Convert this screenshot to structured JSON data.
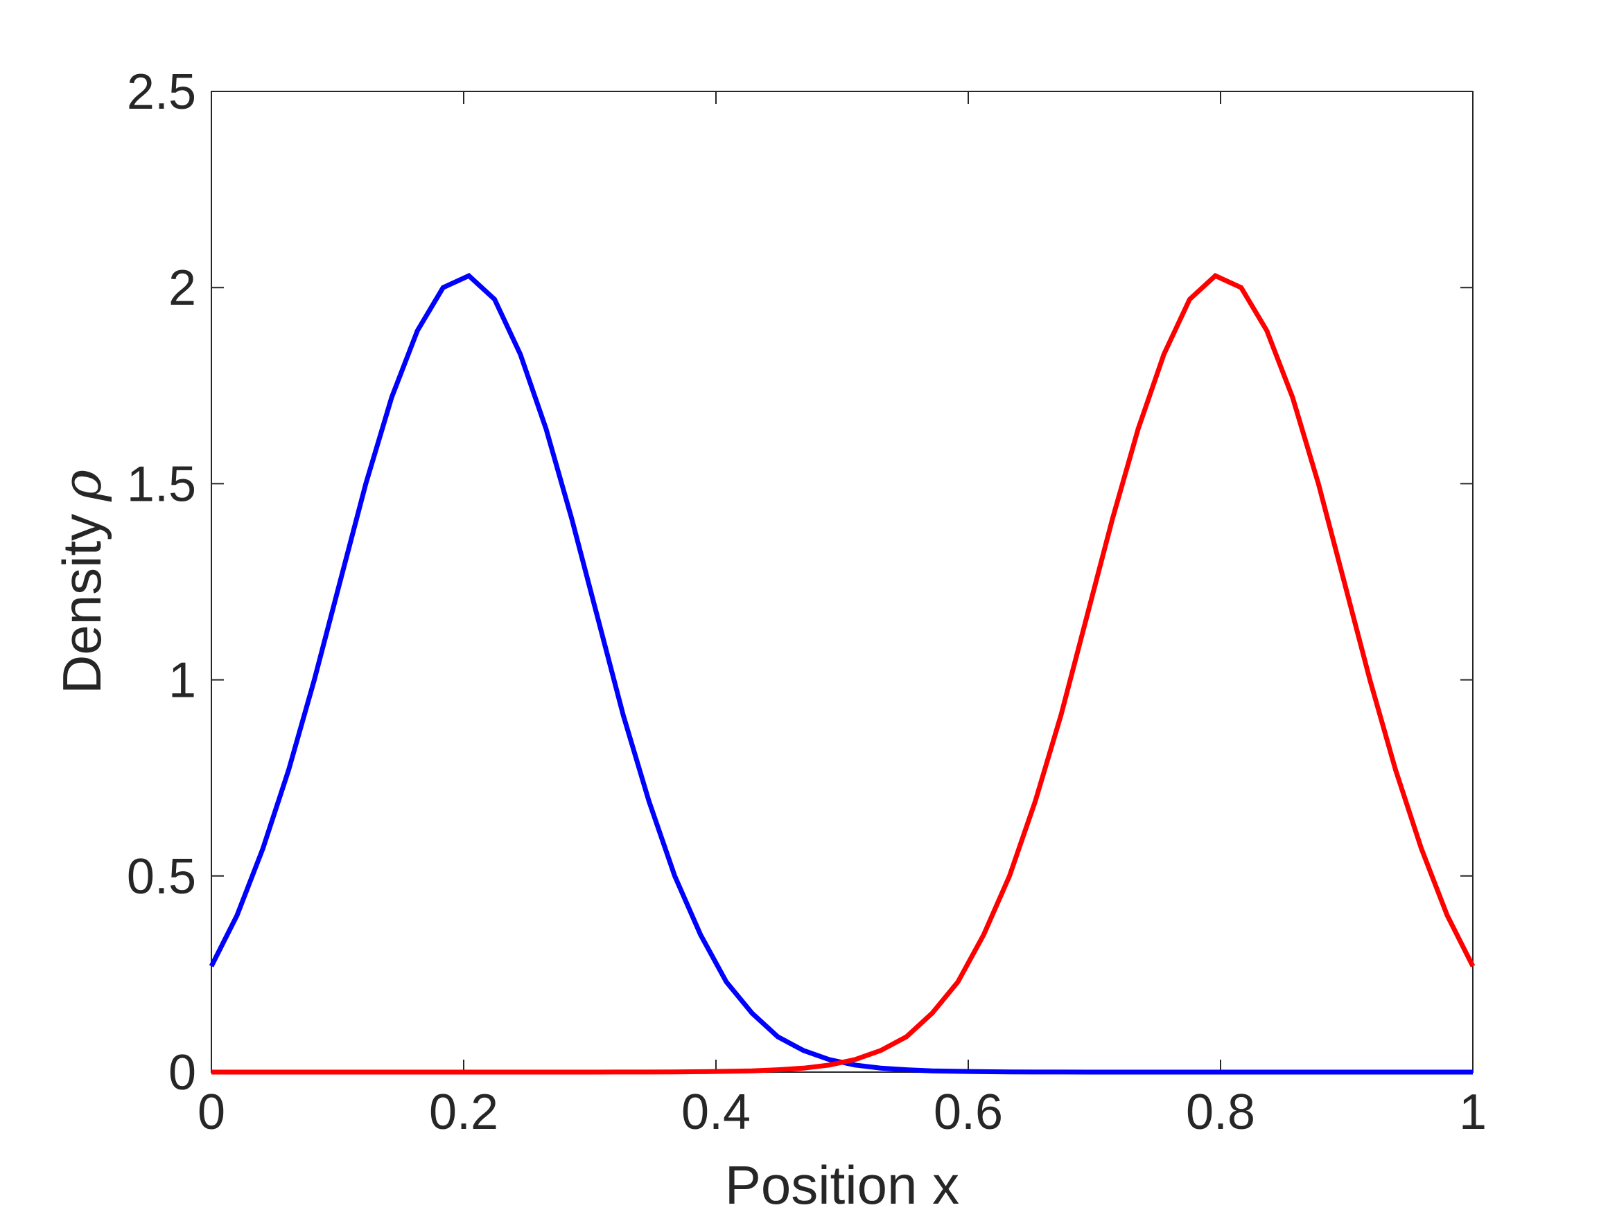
{
  "chart_data": {
    "type": "line",
    "xlabel": "Position x",
    "ylabel": "Density",
    "ylabel_symbol": "ρ",
    "xlim": [
      0,
      1
    ],
    "ylim": [
      0,
      2.5
    ],
    "xticks": [
      0,
      0.2,
      0.4,
      0.6,
      0.8,
      1
    ],
    "xtick_labels": [
      "0",
      "0.2",
      "0.4",
      "0.6",
      "0.8",
      "1"
    ],
    "yticks": [
      0,
      0.5,
      1,
      1.5,
      2,
      2.5
    ],
    "ytick_labels": [
      "0",
      "0.5",
      "1",
      "1.5",
      "2",
      "2.5"
    ],
    "grid": false,
    "legend": "none",
    "series": [
      {
        "color": "#0000ff",
        "x": [
          0,
          0.0204,
          0.0408,
          0.0612,
          0.0816,
          0.102,
          0.1224,
          0.1429,
          0.1633,
          0.1837,
          0.2041,
          0.2245,
          0.2449,
          0.2653,
          0.2857,
          0.3061,
          0.3265,
          0.3469,
          0.3673,
          0.3878,
          0.4082,
          0.4286,
          0.449,
          0.4694,
          0.4898,
          0.5102,
          0.5306,
          0.551,
          0.5714,
          0.5918,
          0.6122,
          0.6327,
          0.6531,
          0.6735,
          0.6939,
          0.7143,
          0.7347,
          0.7551,
          0.7755,
          0.7959,
          0.8163,
          0.8367,
          0.8571,
          0.8776,
          0.898,
          0.9184,
          0.9388,
          0.9592,
          0.9796,
          1
        ],
        "y": [
          0.27,
          0.4,
          0.57,
          0.77,
          1.0,
          1.25,
          1.5,
          1.72,
          1.89,
          2.0,
          2.03,
          1.97,
          1.83,
          1.64,
          1.41,
          1.16,
          0.91,
          0.69,
          0.5,
          0.35,
          0.23,
          0.15,
          0.09,
          0.055,
          0.032,
          0.018,
          0.01,
          0.006,
          0.003,
          0.002,
          0.001,
          0.0005,
          0.0002,
          0.0001,
          0,
          0,
          0,
          0,
          0,
          0,
          0,
          0,
          0,
          0,
          0,
          0,
          0,
          0,
          0,
          0
        ]
      },
      {
        "color": "#ff0000",
        "x": [
          0,
          0.0204,
          0.0408,
          0.0612,
          0.0816,
          0.102,
          0.1224,
          0.1429,
          0.1633,
          0.1837,
          0.2041,
          0.2245,
          0.2449,
          0.2653,
          0.2857,
          0.3061,
          0.3265,
          0.3469,
          0.3673,
          0.3878,
          0.4082,
          0.4286,
          0.449,
          0.4694,
          0.4898,
          0.5102,
          0.5306,
          0.551,
          0.5714,
          0.5918,
          0.6122,
          0.6327,
          0.6531,
          0.6735,
          0.6939,
          0.7143,
          0.7347,
          0.7551,
          0.7755,
          0.7959,
          0.8163,
          0.8367,
          0.8571,
          0.8776,
          0.898,
          0.9184,
          0.9388,
          0.9592,
          0.9796,
          1
        ],
        "y": [
          0,
          0,
          0,
          0,
          0,
          0,
          0,
          0,
          0,
          0,
          0,
          0,
          0,
          0,
          0,
          0,
          0.0001,
          0.0002,
          0.0005,
          0.001,
          0.002,
          0.003,
          0.006,
          0.01,
          0.018,
          0.032,
          0.055,
          0.09,
          0.15,
          0.23,
          0.35,
          0.5,
          0.69,
          0.91,
          1.16,
          1.41,
          1.64,
          1.83,
          1.97,
          2.03,
          2.0,
          1.89,
          1.72,
          1.5,
          1.25,
          1.0,
          0.77,
          0.57,
          0.4,
          0.27
        ]
      }
    ]
  }
}
